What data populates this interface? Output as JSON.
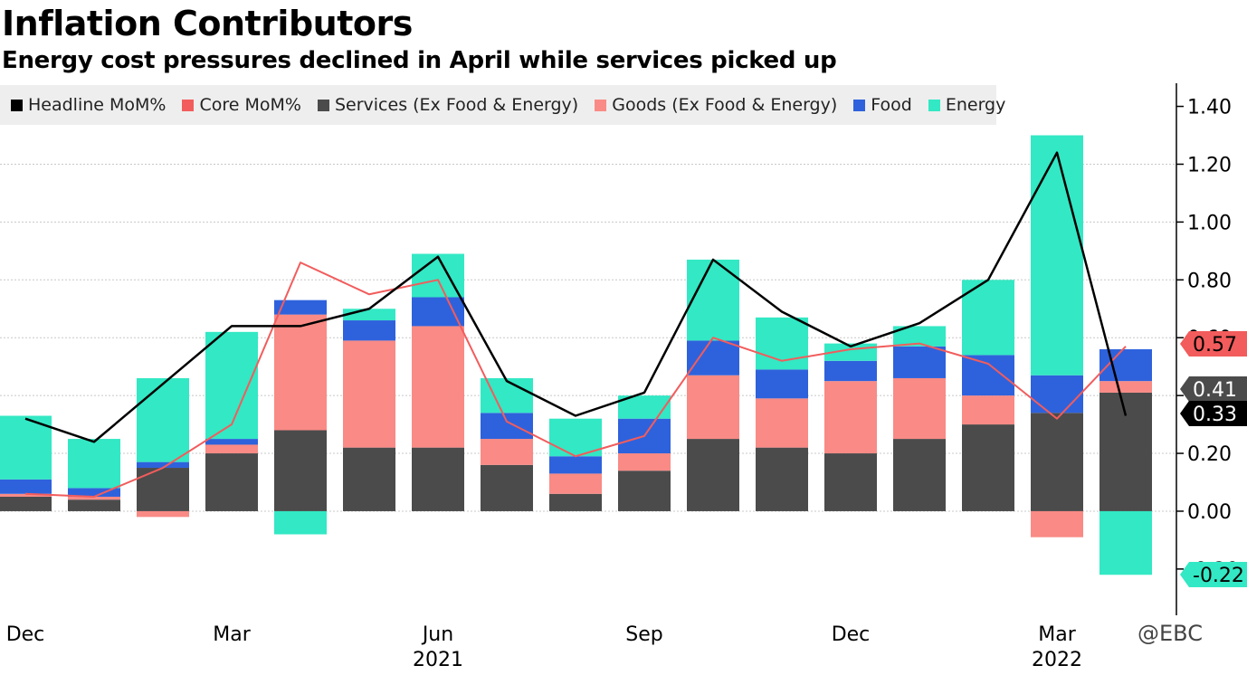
{
  "title": "Inflation Contributors",
  "subtitle": "Energy cost pressures declined in April while services picked up",
  "watermark": "@EBC",
  "colors": {
    "headline": "#000000",
    "core": "#f25c5c",
    "services": "#4b4b4b",
    "goods": "#f98a85",
    "food": "#2e62dc",
    "energy": "#33e8c4"
  },
  "chart_data": {
    "type": "bar",
    "stacked": true,
    "categories": [
      "Dec 2020",
      "Jan 2021",
      "Feb 2021",
      "Mar 2021",
      "Apr 2021",
      "May 2021",
      "Jun 2021",
      "Jul 2021",
      "Aug 2021",
      "Sep 2021",
      "Oct 2021",
      "Nov 2021",
      "Dec 2021",
      "Jan 2022",
      "Feb 2022",
      "Mar 2022",
      "Apr 2022"
    ],
    "x_tick_labels": [
      {
        "index": 0,
        "label": "Dec"
      },
      {
        "index": 3,
        "label": "Mar"
      },
      {
        "index": 6,
        "label": "Jun"
      },
      {
        "index": 9,
        "label": "Sep"
      },
      {
        "index": 12,
        "label": "Dec"
      },
      {
        "index": 15,
        "label": "Mar"
      }
    ],
    "year_labels": [
      {
        "index": 6,
        "label": "2021"
      },
      {
        "index": 15,
        "label": "2022"
      }
    ],
    "series": [
      {
        "name": "Headline MoM%",
        "kind": "line",
        "key": "headline",
        "values": [
          0.32,
          0.24,
          0.44,
          0.64,
          0.64,
          0.7,
          0.88,
          0.45,
          0.33,
          0.41,
          0.87,
          0.69,
          0.57,
          0.65,
          0.8,
          1.24,
          0.33
        ]
      },
      {
        "name": "Core MoM%",
        "kind": "line",
        "key": "core",
        "values": [
          0.06,
          0.05,
          0.15,
          0.3,
          0.86,
          0.75,
          0.8,
          0.31,
          0.19,
          0.26,
          0.6,
          0.52,
          0.56,
          0.58,
          0.51,
          0.32,
          0.57
        ]
      },
      {
        "name": "Services (Ex Food & Energy)",
        "kind": "bar",
        "key": "services",
        "values": [
          0.05,
          0.04,
          0.15,
          0.2,
          0.28,
          0.22,
          0.22,
          0.16,
          0.06,
          0.14,
          0.25,
          0.22,
          0.2,
          0.25,
          0.3,
          0.34,
          0.41
        ]
      },
      {
        "name": "Goods (Ex Food & Energy)",
        "kind": "bar",
        "key": "goods",
        "values": [
          0.01,
          0.01,
          -0.02,
          0.03,
          0.4,
          0.37,
          0.42,
          0.09,
          0.07,
          0.06,
          0.22,
          0.17,
          0.25,
          0.21,
          0.1,
          -0.09,
          0.04
        ]
      },
      {
        "name": "Food",
        "kind": "bar",
        "key": "food",
        "values": [
          0.05,
          0.03,
          0.02,
          0.02,
          0.05,
          0.07,
          0.1,
          0.09,
          0.06,
          0.12,
          0.12,
          0.1,
          0.07,
          0.11,
          0.14,
          0.13,
          0.11
        ]
      },
      {
        "name": "Energy",
        "kind": "bar",
        "key": "energy",
        "values": [
          0.22,
          0.17,
          0.29,
          0.37,
          -0.08,
          0.04,
          0.15,
          0.12,
          0.13,
          0.08,
          0.28,
          0.18,
          0.06,
          0.07,
          0.26,
          0.83,
          -0.22
        ]
      }
    ],
    "y_axis_labels": [
      "1.40",
      "1.20",
      "1.00",
      "0.80",
      "0.60",
      "0.40",
      "0.20",
      "0.00",
      "-0.20"
    ],
    "ylim": [
      -0.36,
      1.48
    ],
    "y_ticks": [
      -0.2,
      0.0,
      0.2,
      0.4,
      0.6,
      0.8,
      1.0,
      1.2,
      1.4
    ],
    "y_axis_position": "right",
    "grid": true,
    "legend_position": "top-left",
    "value_callouts": [
      {
        "text": "0.57",
        "series": "core"
      },
      {
        "text": "0.41",
        "series": "services"
      },
      {
        "text": "0.33",
        "series": "headline"
      },
      {
        "text": "-0.22",
        "series": "energy"
      }
    ]
  }
}
